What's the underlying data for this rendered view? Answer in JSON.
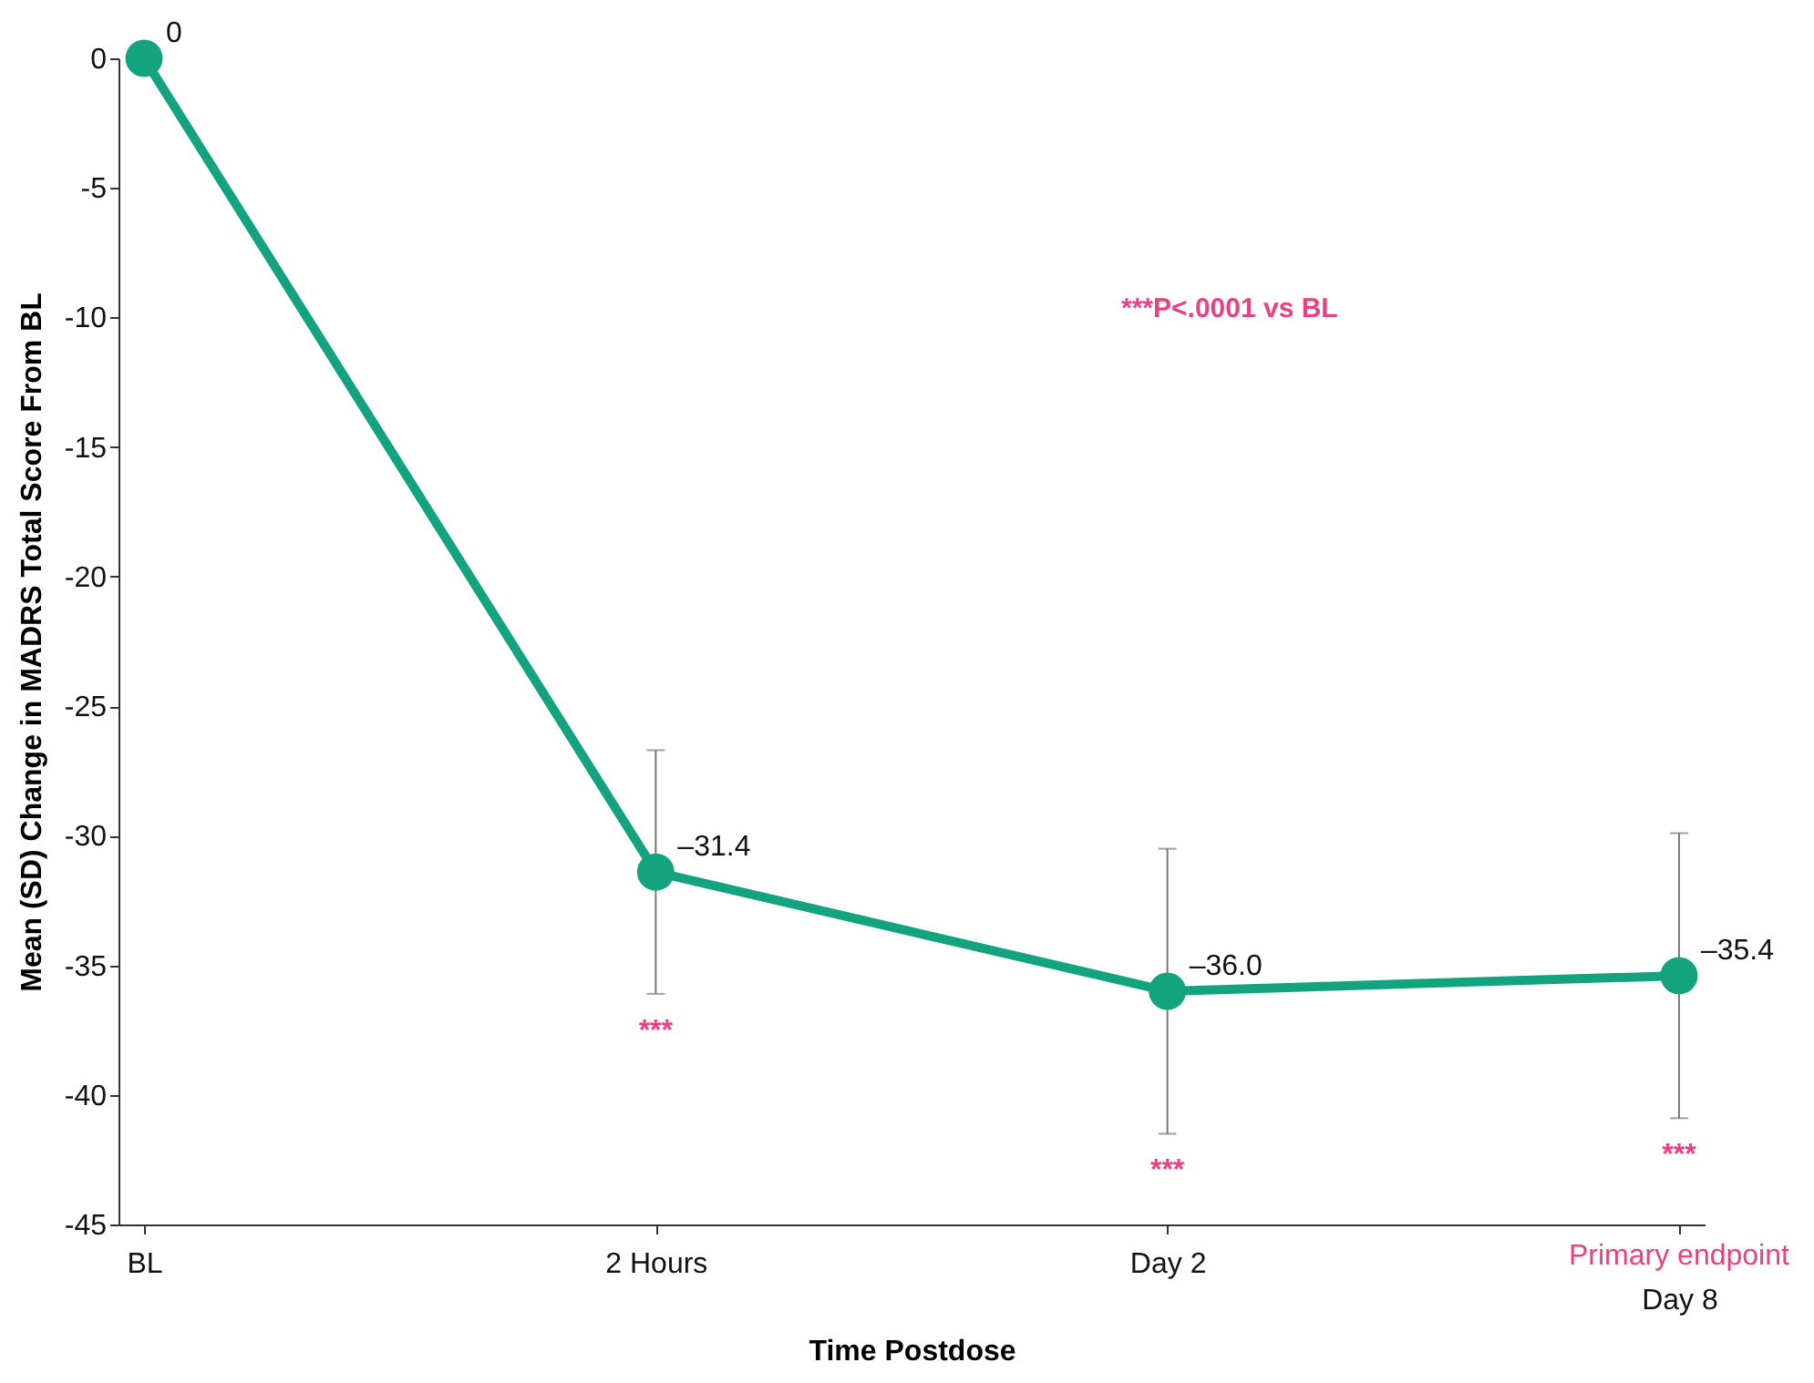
{
  "chart_data": {
    "type": "line",
    "xlabel": "Time Postdose",
    "ylabel": "Mean (SD) Change in MADRS Total Score From BL",
    "categories": [
      "BL",
      "2 Hours",
      "Day 2",
      "Day 8"
    ],
    "series": [
      {
        "color": "#13a37f",
        "values": [
          0,
          -31.4,
          -36.0,
          -35.4
        ],
        "errors": [
          null,
          4.7,
          5.5,
          5.5
        ],
        "value_labels": [
          "0",
          "–31.4",
          "–36.0",
          "–35.4"
        ]
      }
    ],
    "ylim": [
      -45,
      0
    ],
    "yticks": [
      0,
      -5,
      -10,
      -15,
      -20,
      -25,
      -30,
      -35,
      -40,
      -45
    ],
    "marker": "circle",
    "annotations": [
      "***P<.0001 vs BL",
      "***",
      "***",
      "***",
      "Primary endpoint"
    ]
  }
}
